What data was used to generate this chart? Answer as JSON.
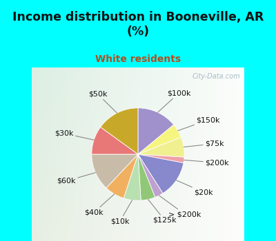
{
  "title": "Income distribution in Booneville, AR\n(%)",
  "subtitle": "White residents",
  "title_color": "#111111",
  "subtitle_color": "#b05020",
  "background_top": "#00ffff",
  "labels": [
    "$100k",
    "$150k",
    "$75k",
    "$200k",
    "$20k",
    "> $200k",
    "$125k",
    "$10k",
    "$40k",
    "$60k",
    "$30k",
    "$50k"
  ],
  "values": [
    14,
    5,
    7,
    2,
    13,
    3,
    5,
    6,
    7,
    13,
    10,
    15
  ],
  "colors": [
    "#a090cc",
    "#f5f580",
    "#f0f090",
    "#f0a0a8",
    "#8888cc",
    "#c0a0d0",
    "#90c878",
    "#b8e0b0",
    "#f0b060",
    "#c8bca8",
    "#e87878",
    "#c8a828"
  ],
  "label_fontsize": 8.0,
  "watermark": "City-Data.com",
  "chart_bg_left": "#c8e8d0",
  "chart_bg_right": "#e8f8f0"
}
